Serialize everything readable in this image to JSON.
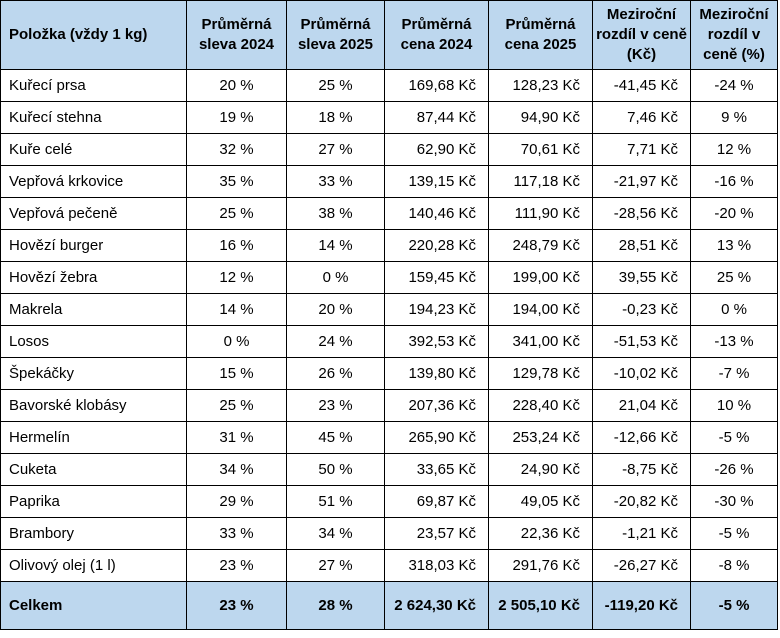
{
  "table": {
    "headers": [
      "Položka (vždy 1 kg)",
      "Průměrná sleva 2024",
      "Průměrná sleva 2025",
      "Průměrná cena 2024",
      "Průměrná cena 2025",
      "Meziroční rozdíl v ceně (Kč)",
      "Meziroční rozdíl v ceně (%)"
    ],
    "rows": [
      [
        "Kuřecí prsa",
        "20 %",
        "25 %",
        "169,68 Kč",
        "128,23 Kč",
        "-41,45 Kč",
        "-24 %"
      ],
      [
        "Kuřecí stehna",
        "19 %",
        "18 %",
        "87,44 Kč",
        "94,90 Kč",
        "7,46 Kč",
        "9 %"
      ],
      [
        "Kuře celé",
        "32 %",
        "27 %",
        "62,90 Kč",
        "70,61 Kč",
        "7,71 Kč",
        "12 %"
      ],
      [
        "Vepřová krkovice",
        "35 %",
        "33 %",
        "139,15 Kč",
        "117,18 Kč",
        "-21,97 Kč",
        "-16 %"
      ],
      [
        "Vepřová pečeně",
        "25 %",
        "38 %",
        "140,46 Kč",
        "111,90 Kč",
        "-28,56 Kč",
        "-20 %"
      ],
      [
        "Hovězí burger",
        "16 %",
        "14 %",
        "220,28 Kč",
        "248,79 Kč",
        "28,51 Kč",
        "13 %"
      ],
      [
        "Hovězí žebra",
        "12 %",
        "0 %",
        "159,45 Kč",
        "199,00 Kč",
        "39,55 Kč",
        "25 %"
      ],
      [
        "Makrela",
        "14 %",
        "20 %",
        "194,23 Kč",
        "194,00 Kč",
        "-0,23 Kč",
        "0 %"
      ],
      [
        "Losos",
        "0 %",
        "24 %",
        "392,53 Kč",
        "341,00 Kč",
        "-51,53 Kč",
        "-13 %"
      ],
      [
        "Špekáčky",
        "15 %",
        "26 %",
        "139,80 Kč",
        "129,78 Kč",
        "-10,02 Kč",
        "-7 %"
      ],
      [
        "Bavorské klobásy",
        "25 %",
        "23 %",
        "207,36 Kč",
        "228,40 Kč",
        "21,04 Kč",
        "10 %"
      ],
      [
        "Hermelín",
        "31 %",
        "45 %",
        "265,90 Kč",
        "253,24 Kč",
        "-12,66 Kč",
        "-5 %"
      ],
      [
        "Cuketa",
        "34 %",
        "50 %",
        "33,65 Kč",
        "24,90 Kč",
        "-8,75 Kč",
        "-26 %"
      ],
      [
        "Paprika",
        "29 %",
        "51 %",
        "69,87 Kč",
        "49,05 Kč",
        "-20,82 Kč",
        "-30 %"
      ],
      [
        "Brambory",
        "33 %",
        "34 %",
        "23,57 Kč",
        "22,36 Kč",
        "-1,21 Kč",
        "-5 %"
      ],
      [
        "Olivový olej (1 l)",
        "23 %",
        "27 %",
        "318,03 Kč",
        "291,76 Kč",
        "-26,27 Kč",
        "-8 %"
      ]
    ],
    "total": [
      "Celkem",
      "23 %",
      "28 %",
      "2 624,30 Kč",
      "2 505,10 Kč",
      "-119,20 Kč",
      "-5 %"
    ]
  },
  "colors": {
    "header_bg": "#bdd7ee",
    "grid_lines": "#000000"
  }
}
